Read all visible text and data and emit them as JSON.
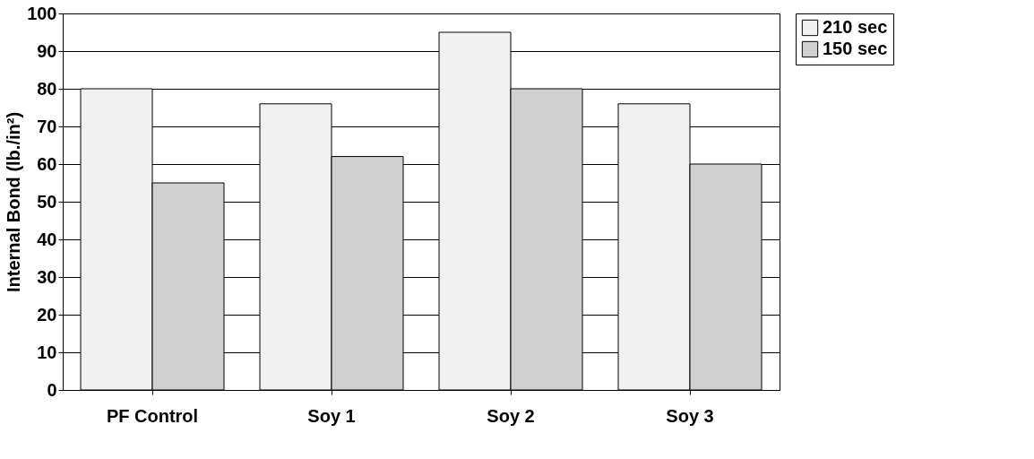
{
  "chart_data": {
    "type": "bar",
    "ylabel": "Internal Bond (lb./in²)",
    "categories": [
      "PF Control",
      "Soy 1",
      "Soy 2",
      "Soy 3"
    ],
    "series": [
      {
        "name": "210 sec",
        "color": "#f0f0f0",
        "values": [
          80,
          76,
          95,
          76
        ]
      },
      {
        "name": "150 sec",
        "color": "#d0d0d0",
        "values": [
          55,
          62,
          80,
          60
        ]
      }
    ],
    "ylim": [
      0,
      100
    ],
    "yticks": [
      0,
      10,
      20,
      30,
      40,
      50,
      60,
      70,
      80,
      90,
      100
    ],
    "grid": "y",
    "legend": "right"
  }
}
